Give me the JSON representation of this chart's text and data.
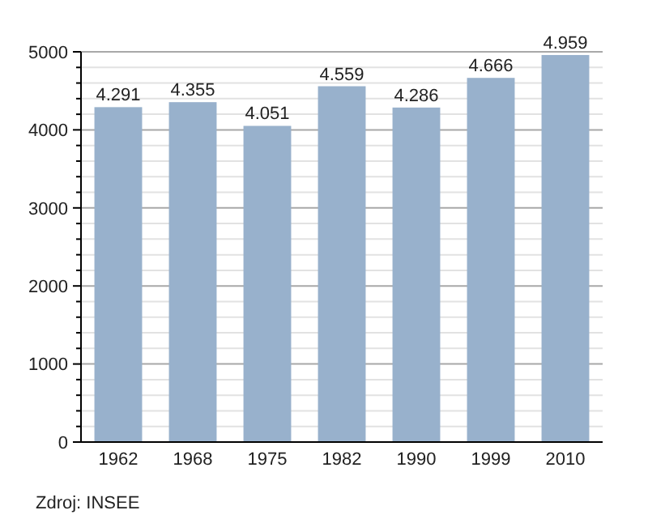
{
  "chart_data": {
    "type": "bar",
    "categories": [
      "1962",
      "1968",
      "1975",
      "1982",
      "1990",
      "1999",
      "2010"
    ],
    "values": [
      4291,
      4355,
      4051,
      4559,
      4286,
      4666,
      4959
    ],
    "value_labels": [
      "4.291",
      "4.355",
      "4.051",
      "4.559",
      "4.286",
      "4.666",
      "4.959"
    ],
    "color": "#98b1cc",
    "ylim": [
      0,
      5000
    ],
    "yticks": [
      0,
      {
        "value": 200,
        "label": null
      },
      {
        "value": 400,
        "label": null
      },
      {
        "value": 600,
        "label": null
      },
      {
        "value": 800,
        "label": null
      },
      1000,
      {
        "value": 1200,
        "label": null
      },
      {
        "value": 1400,
        "label": null
      },
      {
        "value": 1600,
        "label": null
      },
      {
        "value": 1800,
        "label": null
      },
      2000,
      {
        "value": 2200,
        "label": null
      },
      {
        "value": 2400,
        "label": null
      },
      {
        "value": 2600,
        "label": null
      },
      {
        "value": 2800,
        "label": null
      },
      3000,
      {
        "value": 3200,
        "label": null
      },
      {
        "value": 3400,
        "label": null
      },
      {
        "value": 3600,
        "label": null
      },
      {
        "value": 3800,
        "label": null
      },
      4000,
      {
        "value": 4200,
        "label": null
      },
      {
        "value": 4400,
        "label": null
      },
      {
        "value": 4600,
        "label": null
      },
      {
        "value": 4800,
        "label": null
      },
      5000
    ],
    "grid": true,
    "annotations": [
      "Zdroj: INSEE"
    ]
  }
}
